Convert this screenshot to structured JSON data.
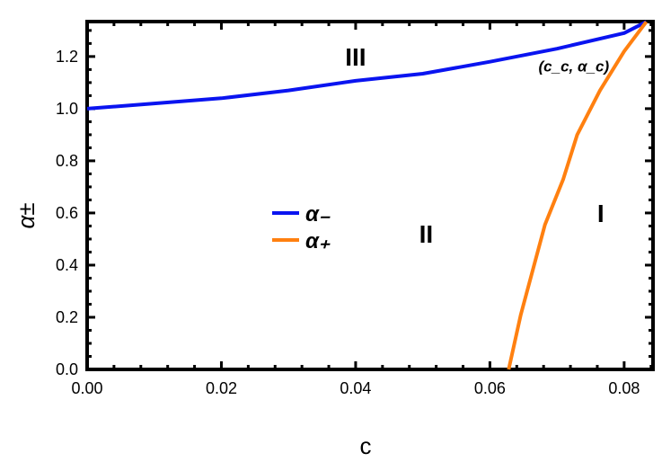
{
  "chart_data": {
    "type": "line",
    "title": "",
    "xlabel": "c",
    "ylabel": "α±",
    "xlim": [
      0,
      0.0843
    ],
    "ylim": [
      0,
      1.334
    ],
    "xticks": [
      "0.00",
      "0.02",
      "0.04",
      "0.06",
      "0.08"
    ],
    "yticks": [
      "0.0",
      "0.2",
      "0.4",
      "0.6",
      "0.8",
      "1.0",
      "1.2"
    ],
    "grid": false,
    "legend_position": "center-left",
    "series": [
      {
        "name": "α₋",
        "color": "#0a14f0",
        "x": [
          0,
          0.01,
          0.02,
          0.03,
          0.04,
          0.05,
          0.06,
          0.07,
          0.08,
          0.0833
        ],
        "y": [
          1.0,
          1.02,
          1.04,
          1.07,
          1.107,
          1.134,
          1.18,
          1.23,
          1.29,
          1.333
        ]
      },
      {
        "name": "α₊",
        "color": "#ff8010",
        "x": [
          0.0628,
          0.0646,
          0.0682,
          0.0709,
          0.073,
          0.0764,
          0.08,
          0.0833
        ],
        "y": [
          0.0,
          0.21,
          0.555,
          0.728,
          0.9,
          1.07,
          1.22,
          1.333
        ]
      }
    ],
    "annotations": [
      {
        "text": "III",
        "x": 0.04,
        "y": 1.2
      },
      {
        "text": "II",
        "x": 0.0505,
        "y": 0.52
      },
      {
        "text": "I",
        "x": 0.0765,
        "y": 0.6
      },
      {
        "text": "(c_c, α_c)",
        "x": 0.0725,
        "y": 1.16
      }
    ]
  }
}
